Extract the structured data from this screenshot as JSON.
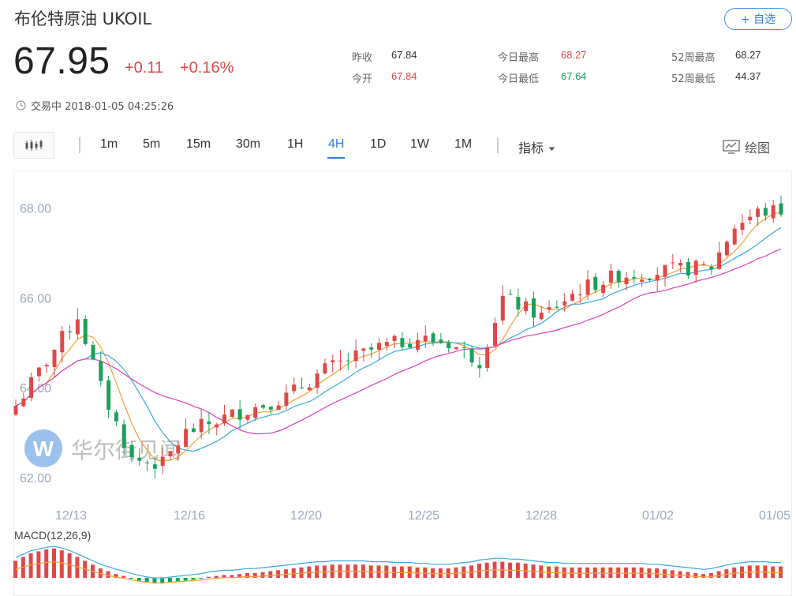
{
  "header": {
    "title": "布伦特原油  UKOIL",
    "favorite_label": "+ 自选",
    "price": "67.95",
    "change": "+0.11",
    "change_pct": "+0.16%",
    "status": "交易中 2018-01-05 04:25:26"
  },
  "stats": [
    {
      "label": "昨收",
      "value": "67.84",
      "color": "#333333"
    },
    {
      "label": "今开",
      "value": "67.84",
      "color": "#e04848"
    },
    {
      "label": "今日最高",
      "value": "68.27",
      "color": "#e04848"
    },
    {
      "label": "今日最低",
      "value": "67.64",
      "color": "#1aa05a"
    },
    {
      "label": "52周最高",
      "value": "68.27",
      "color": "#333333"
    },
    {
      "label": "52周最低",
      "value": "44.37",
      "color": "#333333"
    }
  ],
  "toolbar": {
    "timeframes": [
      "1m",
      "5m",
      "15m",
      "30m",
      "1H",
      "4H",
      "1D",
      "1W",
      "1M"
    ],
    "active": "4H",
    "indicator_label": "指标",
    "draw_label": "绘图"
  },
  "watermark": "华尔街见闻",
  "colors": {
    "up": "#e04848",
    "down": "#1aa05a",
    "ma5": "#f0a030",
    "ma10": "#3aa8e0",
    "ma20": "#e040b8",
    "accent": "#2f7fd8"
  },
  "chart_data": {
    "type": "candlestick",
    "y_ticks": [
      "68.00",
      "66.00",
      "64.00",
      "62.00"
    ],
    "y_tick_values": [
      68,
      66,
      64,
      62
    ],
    "x_ticks": [
      "12/13",
      "12/16",
      "12/20",
      "12/25",
      "12/28",
      "01/02",
      "01/05"
    ],
    "ylim": [
      61.0,
      69.0
    ],
    "candle_count": 100,
    "close_start": 63.6,
    "close_end": 67.95,
    "macd_label": "MACD(12,26,9)",
    "macd_hist": [
      0.18,
      0.22,
      0.26,
      0.28,
      0.3,
      0.31,
      0.29,
      0.26,
      0.22,
      0.18,
      0.14,
      0.1,
      0.07,
      0.04,
      0.02,
      -0.01,
      -0.03,
      -0.05,
      -0.06,
      -0.06,
      -0.05,
      -0.04,
      -0.03,
      -0.02,
      -0.01,
      0.01,
      0.02,
      0.03,
      0.03,
      0.04,
      0.05,
      0.05,
      0.06,
      0.07,
      0.08,
      0.09,
      0.1,
      0.11,
      0.12,
      0.13,
      0.13,
      0.14,
      0.14,
      0.14,
      0.14,
      0.14,
      0.13,
      0.13,
      0.13,
      0.12,
      0.12,
      0.12,
      0.11,
      0.11,
      0.1,
      0.1,
      0.1,
      0.11,
      0.12,
      0.13,
      0.15,
      0.16,
      0.17,
      0.17,
      0.16,
      0.16,
      0.15,
      0.14,
      0.13,
      0.12,
      0.12,
      0.11,
      0.11,
      0.11,
      0.11,
      0.11,
      0.11,
      0.11,
      0.11,
      0.11,
      0.11,
      0.11,
      0.1,
      0.1,
      0.09,
      0.08,
      0.07,
      0.06,
      0.05,
      0.04,
      0.05,
      0.07,
      0.09,
      0.11,
      0.12,
      0.13,
      0.13,
      0.13,
      0.12,
      0.12
    ]
  }
}
